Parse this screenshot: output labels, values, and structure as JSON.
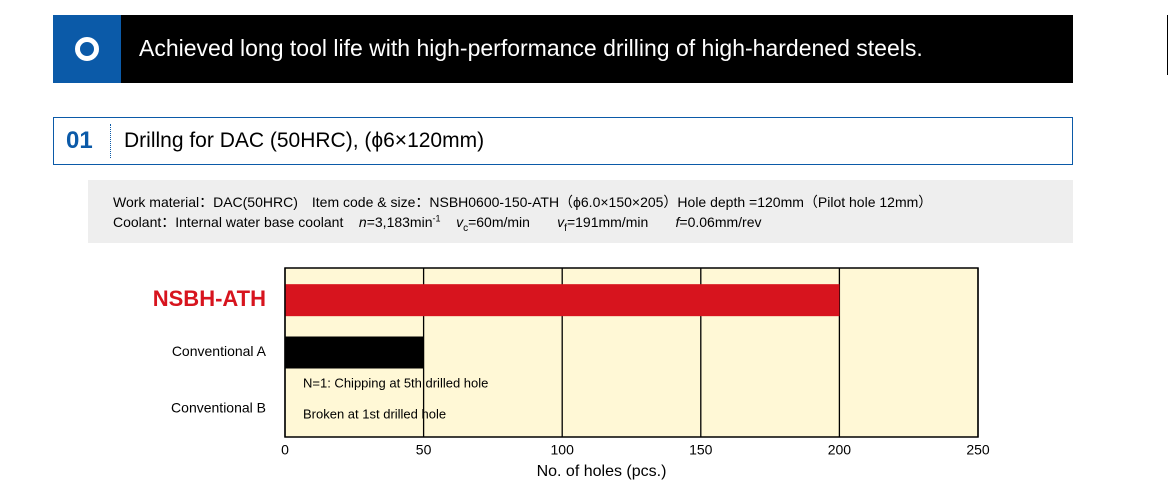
{
  "header": {
    "title": "Achieved long tool life with high-performance drilling of high-hardened steels."
  },
  "section": {
    "number": "01",
    "title": "Drillng for DAC (50HRC), (ϕ6×120mm)"
  },
  "conditions": {
    "line1": "Work material：DAC(50HRC)　Item code & size：NSBH0600-150-ATH（ϕ6.0×150×205）Hole depth =120mm（Pilot hole 12mm）",
    "coolant": "Coolant：Internal water base coolant",
    "speed": {
      "symbol": "n",
      "value": "=3,183min",
      "exp": "-1"
    },
    "cutting_speed": {
      "symbol": "v",
      "sub": "c",
      "value": "=60m/min"
    },
    "feed_rate": {
      "symbol": "v",
      "sub": "f",
      "value": "=191mm/min"
    },
    "feed": {
      "symbol": "f",
      "value": "=0.06mm/rev"
    }
  },
  "chart_data": {
    "type": "barh",
    "categories": [
      "NSBH-ATH",
      "Conventional A",
      "Conventional B"
    ],
    "values": [
      200,
      50,
      0
    ],
    "colors": [
      "#d7141e",
      "#000000",
      "#000000"
    ],
    "annotations": [
      "N=1: Chipping at 5th drilled hole",
      "Broken at 1st drilled hole"
    ],
    "xlabel": "No. of holes (pcs.)",
    "xlim": [
      0,
      250
    ],
    "xticks": [
      0,
      50,
      100,
      150,
      200,
      250
    ],
    "grid": true,
    "background": "#fff8d6"
  }
}
